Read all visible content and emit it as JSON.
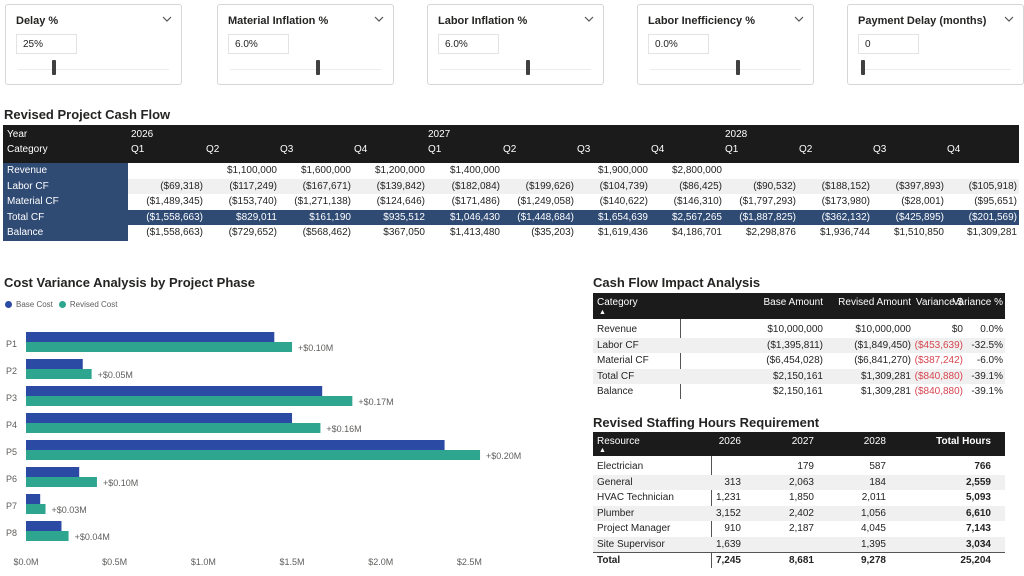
{
  "slicers": [
    {
      "title": "Delay %",
      "value": "25%",
      "thumb": 0.34
    },
    {
      "title": "Material Inflation %",
      "value": "6.0%",
      "thumb": 0.58
    },
    {
      "title": "Labor Inflation %",
      "value": "6.0%",
      "thumb": 0.58
    },
    {
      "title": "Labor Inefficiency %",
      "value": "0.0%",
      "thumb": 0.58
    },
    {
      "title": "Payment Delay (months)",
      "value": "0",
      "thumb": 0.0
    }
  ],
  "cashflow": {
    "title": "Revised Project Cash Flow",
    "year_label": "Year",
    "category_label": "Category",
    "years": [
      "2026",
      "2027",
      "2028"
    ],
    "quarters": [
      "Q1",
      "Q2",
      "Q3",
      "Q4",
      "Q1",
      "Q2",
      "Q3",
      "Q4",
      "Q1",
      "Q2",
      "Q3",
      "Q4"
    ],
    "rows": [
      {
        "label": "Revenue",
        "cells": [
          "",
          "$1,100,000",
          "$1,600,000",
          "$1,200,000",
          "$1,400,000",
          "",
          "$1,900,000",
          "$2,800,000",
          "",
          "",
          "",
          ""
        ]
      },
      {
        "label": "Labor CF",
        "cells": [
          "($69,318)",
          "($117,249)",
          "($167,671)",
          "($139,842)",
          "($182,084)",
          "($199,626)",
          "($104,739)",
          "($86,425)",
          "($90,532)",
          "($188,152)",
          "($397,893)",
          "($105,918)"
        ]
      },
      {
        "label": "Material CF",
        "cells": [
          "($1,489,345)",
          "($153,740)",
          "($1,271,138)",
          "($124,646)",
          "($171,486)",
          "($1,249,058)",
          "($140,622)",
          "($146,310)",
          "($1,797,293)",
          "($173,980)",
          "($28,001)",
          "($95,651)"
        ]
      },
      {
        "label": "Total CF",
        "cells": [
          "($1,558,663)",
          "$829,011",
          "$161,190",
          "$935,512",
          "$1,046,430",
          "($1,448,684)",
          "$1,654,639",
          "$2,567,265",
          "($1,887,825)",
          "($362,132)",
          "($425,895)",
          "($201,569)"
        ]
      },
      {
        "label": "Balance",
        "cells": [
          "($1,558,663)",
          "($729,652)",
          "($568,462)",
          "$367,050",
          "$1,413,480",
          "($35,203)",
          "$1,619,436",
          "$4,186,701",
          "$2,298,876",
          "$1,936,744",
          "$1,510,850",
          "$1,309,281"
        ]
      }
    ]
  },
  "variance": {
    "title": "Cost Variance Analysis by Project Phase",
    "legend": [
      "Base Cost",
      "Revised Cost"
    ],
    "colors": {
      "base": "#2b4aa3",
      "revised": "#2ea58e"
    }
  },
  "chart_data": {
    "type": "bar",
    "orientation": "horizontal",
    "categories": [
      "P1",
      "P2",
      "P3",
      "P4",
      "P5",
      "P6",
      "P7",
      "P8"
    ],
    "series": [
      {
        "name": "Base Cost",
        "values": [
          1.4,
          0.32,
          1.67,
          1.5,
          2.36,
          0.3,
          0.08,
          0.2
        ]
      },
      {
        "name": "Revised Cost",
        "values": [
          1.5,
          0.37,
          1.84,
          1.66,
          2.56,
          0.4,
          0.11,
          0.24
        ]
      }
    ],
    "data_labels": [
      "+$0.10M",
      "+$0.05M",
      "+$0.17M",
      "+$0.16M",
      "+$0.20M",
      "+$0.10M",
      "+$0.03M",
      "+$0.04M"
    ],
    "x_ticks": [
      "$0.0M",
      "$0.5M",
      "$1.0M",
      "$1.5M",
      "$2.0M",
      "$2.5M"
    ],
    "xlim": [
      0,
      2.65
    ],
    "x_unit": "$M",
    "legend_position": "top-left",
    "grid": false
  },
  "impact": {
    "title": "Cash Flow Impact Analysis",
    "headers": [
      "Category",
      "Base Amount",
      "Revised Amount",
      "Variance $",
      "Variance %"
    ],
    "rows": [
      {
        "cells": [
          "Revenue",
          "$10,000,000",
          "$10,000,000",
          "$0",
          "0.0%"
        ],
        "neg": false
      },
      {
        "cells": [
          "Labor CF",
          "($1,395,811)",
          "($1,849,450)",
          "($453,639)",
          "-32.5%"
        ],
        "neg": true
      },
      {
        "cells": [
          "Material CF",
          "($6,454,028)",
          "($6,841,270)",
          "($387,242)",
          "-6.0%"
        ],
        "neg": true
      },
      {
        "cells": [
          "Total CF",
          "$2,150,161",
          "$1,309,281",
          "($840,880)",
          "-39.1%"
        ],
        "neg": true
      },
      {
        "cells": [
          "Balance",
          "$2,150,161",
          "$1,309,281",
          "($840,880)",
          "-39.1%"
        ],
        "neg": true
      }
    ]
  },
  "staffing": {
    "title": "Revised Staffing Hours Requirement",
    "headers": [
      "Resource",
      "2026",
      "2027",
      "2028",
      "Total Hours"
    ],
    "rows": [
      [
        "Electrician",
        "",
        "179",
        "587",
        "766"
      ],
      [
        "General",
        "313",
        "2,063",
        "184",
        "2,559"
      ],
      [
        "HVAC Technician",
        "1,231",
        "1,850",
        "2,011",
        "5,093"
      ],
      [
        "Plumber",
        "3,152",
        "2,402",
        "1,056",
        "6,610"
      ],
      [
        "Project Manager",
        "910",
        "2,187",
        "4,045",
        "7,143"
      ],
      [
        "Site Supervisor",
        "1,639",
        "",
        "1,395",
        "3,034"
      ]
    ],
    "total": [
      "Total",
      "7,245",
      "8,681",
      "9,278",
      "25,204"
    ]
  }
}
